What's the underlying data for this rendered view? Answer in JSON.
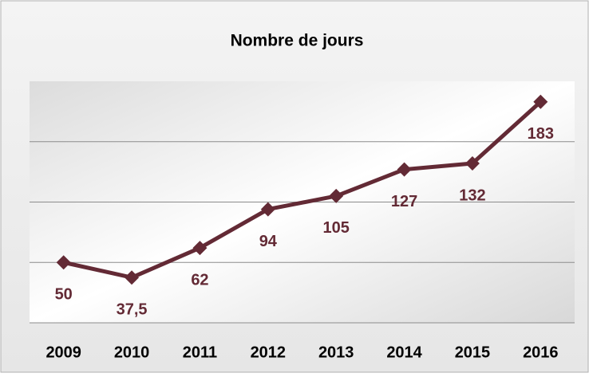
{
  "chart_data": {
    "type": "line",
    "title": "Nombre de jours",
    "categories": [
      "2009",
      "2010",
      "2011",
      "2012",
      "2013",
      "2014",
      "2015",
      "2016"
    ],
    "values": [
      50,
      37.5,
      62,
      94,
      105,
      127,
      132,
      183
    ],
    "value_labels": [
      "50",
      "37,5",
      "62",
      "94",
      "105",
      "127",
      "132",
      "183"
    ],
    "color": "#632a35",
    "ylim": [
      0,
      200
    ],
    "yticks": [
      0,
      50,
      100,
      150
    ],
    "grid": true
  }
}
